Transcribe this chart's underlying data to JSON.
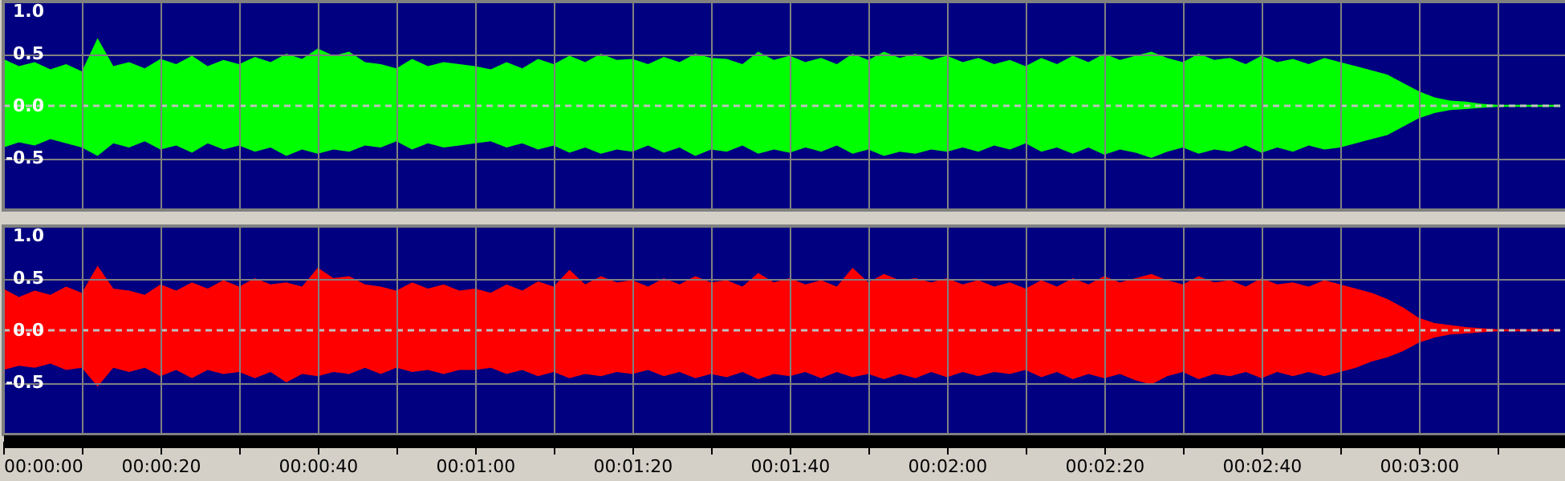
{
  "chart_data": [
    {
      "type": "area",
      "x": [
        0,
        2,
        4,
        6,
        8,
        10,
        12,
        14,
        16,
        18,
        20,
        22,
        24,
        26,
        28,
        30,
        32,
        34,
        36,
        38,
        40,
        42,
        44,
        46,
        48,
        50,
        52,
        54,
        56,
        58,
        60,
        62,
        64,
        66,
        68,
        70,
        72,
        74,
        76,
        78,
        80,
        82,
        84,
        86,
        88,
        90,
        92,
        94,
        96,
        98,
        100,
        102,
        104,
        106,
        108,
        110,
        112,
        114,
        116,
        118,
        120,
        122,
        124,
        126,
        128,
        130,
        132,
        134,
        136,
        138,
        140,
        142,
        144,
        146,
        148,
        150,
        152,
        154,
        156,
        158,
        160,
        162,
        164,
        166,
        168,
        170,
        172,
        174,
        176,
        178,
        180,
        182,
        184,
        186,
        188,
        190,
        192,
        194,
        196,
        198
      ],
      "series": [
        {
          "color": "#00ff00",
          "values": [
            0.45,
            0.38,
            0.42,
            0.35,
            0.4,
            0.33,
            0.65,
            0.38,
            0.42,
            0.36,
            0.45,
            0.4,
            0.48,
            0.38,
            0.44,
            0.4,
            0.47,
            0.42,
            0.5,
            0.45,
            0.55,
            0.48,
            0.52,
            0.42,
            0.4,
            0.36,
            0.45,
            0.38,
            0.42,
            0.4,
            0.38,
            0.35,
            0.42,
            0.36,
            0.45,
            0.4,
            0.48,
            0.42,
            0.5,
            0.44,
            0.45,
            0.4,
            0.47,
            0.42,
            0.5,
            0.46,
            0.45,
            0.4,
            0.52,
            0.44,
            0.48,
            0.42,
            0.46,
            0.4,
            0.5,
            0.44,
            0.52,
            0.46,
            0.5,
            0.44,
            0.48,
            0.42,
            0.46,
            0.4,
            0.44,
            0.38,
            0.46,
            0.4,
            0.48,
            0.42,
            0.5,
            0.44,
            0.48,
            0.52,
            0.46,
            0.42,
            0.5,
            0.44,
            0.46,
            0.4,
            0.48,
            0.42,
            0.45,
            0.4,
            0.46,
            0.42,
            0.38,
            0.34,
            0.3,
            0.22,
            0.14,
            0.08,
            0.05,
            0.04,
            0.02,
            0.01,
            0.01,
            0.01,
            0.01,
            0.01
          ]
        },
        {
          "color": "#00ff00",
          "values": [
            -0.4,
            -0.35,
            -0.38,
            -0.32,
            -0.36,
            -0.4,
            -0.48,
            -0.36,
            -0.4,
            -0.34,
            -0.42,
            -0.38,
            -0.45,
            -0.36,
            -0.42,
            -0.38,
            -0.44,
            -0.4,
            -0.48,
            -0.42,
            -0.46,
            -0.42,
            -0.44,
            -0.38,
            -0.4,
            -0.34,
            -0.42,
            -0.36,
            -0.4,
            -0.38,
            -0.36,
            -0.34,
            -0.4,
            -0.36,
            -0.42,
            -0.38,
            -0.45,
            -0.4,
            -0.46,
            -0.42,
            -0.44,
            -0.38,
            -0.45,
            -0.4,
            -0.48,
            -0.42,
            -0.44,
            -0.38,
            -0.46,
            -0.42,
            -0.45,
            -0.4,
            -0.44,
            -0.38,
            -0.46,
            -0.42,
            -0.48,
            -0.44,
            -0.46,
            -0.42,
            -0.44,
            -0.4,
            -0.44,
            -0.38,
            -0.42,
            -0.36,
            -0.44,
            -0.4,
            -0.46,
            -0.4,
            -0.47,
            -0.42,
            -0.45,
            -0.5,
            -0.44,
            -0.4,
            -0.46,
            -0.42,
            -0.44,
            -0.38,
            -0.45,
            -0.4,
            -0.44,
            -0.38,
            -0.42,
            -0.4,
            -0.36,
            -0.32,
            -0.28,
            -0.2,
            -0.12,
            -0.07,
            -0.04,
            -0.03,
            -0.02,
            -0.01,
            -0.01,
            -0.01,
            -0.01,
            -0.01
          ]
        }
      ],
      "xlim": [
        0,
        199
      ],
      "xticks": [
        0,
        {
          "value": 10,
          "label": null
        },
        20,
        {
          "value": 30,
          "label": null
        },
        40,
        {
          "value": 50,
          "label": null
        },
        60,
        {
          "value": 70,
          "label": null
        },
        80,
        {
          "value": 90,
          "label": null
        },
        100,
        {
          "value": 110,
          "label": null
        },
        120,
        {
          "value": 130,
          "label": null
        },
        140,
        {
          "value": 150,
          "label": null
        },
        160,
        {
          "value": 170,
          "label": null
        },
        180,
        {
          "value": 190,
          "label": null
        }
      ],
      "ylim": [
        -1,
        1
      ],
      "yticks": [
        {
          "value": 1,
          "label": "1.0"
        },
        {
          "value": 0.5,
          "label": "0.5"
        },
        {
          "value": 0,
          "label": "0.0"
        },
        {
          "value": -0.5,
          "label": "-0.5"
        }
      ],
      "ref_lines": [
        {
          "axis": "y",
          "value": 0,
          "color": "#c0c0c0",
          "line_style": "dashed"
        }
      ],
      "grid": true,
      "tick_labels": "y"
    },
    {
      "type": "area",
      "x": [
        0,
        2,
        4,
        6,
        8,
        10,
        12,
        14,
        16,
        18,
        20,
        22,
        24,
        26,
        28,
        30,
        32,
        34,
        36,
        38,
        40,
        42,
        44,
        46,
        48,
        50,
        52,
        54,
        56,
        58,
        60,
        62,
        64,
        66,
        68,
        70,
        72,
        74,
        76,
        78,
        80,
        82,
        84,
        86,
        88,
        90,
        92,
        94,
        96,
        98,
        100,
        102,
        104,
        106,
        108,
        110,
        112,
        114,
        116,
        118,
        120,
        122,
        124,
        126,
        128,
        130,
        132,
        134,
        136,
        138,
        140,
        142,
        144,
        146,
        148,
        150,
        152,
        154,
        156,
        158,
        160,
        162,
        164,
        166,
        168,
        170,
        172,
        174,
        176,
        178,
        180,
        182,
        184,
        186,
        188,
        190,
        192,
        194,
        196,
        198
      ],
      "series": [
        {
          "color": "#ff0000",
          "values": [
            0.4,
            0.32,
            0.38,
            0.34,
            0.42,
            0.36,
            0.62,
            0.4,
            0.38,
            0.34,
            0.44,
            0.38,
            0.46,
            0.4,
            0.48,
            0.42,
            0.5,
            0.44,
            0.46,
            0.42,
            0.6,
            0.5,
            0.52,
            0.44,
            0.42,
            0.38,
            0.46,
            0.4,
            0.44,
            0.38,
            0.4,
            0.36,
            0.44,
            0.38,
            0.47,
            0.42,
            0.58,
            0.44,
            0.52,
            0.46,
            0.48,
            0.42,
            0.5,
            0.44,
            0.52,
            0.46,
            0.48,
            0.42,
            0.55,
            0.46,
            0.5,
            0.44,
            0.48,
            0.42,
            0.6,
            0.46,
            0.54,
            0.48,
            0.5,
            0.46,
            0.5,
            0.44,
            0.48,
            0.42,
            0.46,
            0.4,
            0.48,
            0.42,
            0.5,
            0.44,
            0.52,
            0.46,
            0.5,
            0.54,
            0.48,
            0.44,
            0.52,
            0.46,
            0.48,
            0.42,
            0.5,
            0.44,
            0.46,
            0.42,
            0.48,
            0.44,
            0.4,
            0.36,
            0.3,
            0.22,
            0.12,
            0.07,
            0.05,
            0.03,
            0.02,
            0.01,
            0.01,
            0.01,
            0.01,
            0.01
          ]
        },
        {
          "color": "#ff0000",
          "values": [
            -0.38,
            -0.34,
            -0.36,
            -0.32,
            -0.38,
            -0.36,
            -0.54,
            -0.36,
            -0.4,
            -0.36,
            -0.44,
            -0.38,
            -0.46,
            -0.38,
            -0.42,
            -0.4,
            -0.46,
            -0.4,
            -0.5,
            -0.42,
            -0.44,
            -0.4,
            -0.42,
            -0.36,
            -0.42,
            -0.36,
            -0.4,
            -0.38,
            -0.42,
            -0.38,
            -0.38,
            -0.36,
            -0.42,
            -0.38,
            -0.44,
            -0.4,
            -0.46,
            -0.42,
            -0.44,
            -0.4,
            -0.42,
            -0.38,
            -0.44,
            -0.4,
            -0.46,
            -0.42,
            -0.45,
            -0.4,
            -0.47,
            -0.42,
            -0.44,
            -0.4,
            -0.46,
            -0.4,
            -0.45,
            -0.42,
            -0.47,
            -0.42,
            -0.46,
            -0.4,
            -0.45,
            -0.4,
            -0.44,
            -0.4,
            -0.42,
            -0.38,
            -0.45,
            -0.4,
            -0.47,
            -0.42,
            -0.46,
            -0.42,
            -0.48,
            -0.52,
            -0.44,
            -0.4,
            -0.47,
            -0.42,
            -0.44,
            -0.4,
            -0.46,
            -0.4,
            -0.44,
            -0.4,
            -0.44,
            -0.4,
            -0.36,
            -0.3,
            -0.26,
            -0.2,
            -0.12,
            -0.07,
            -0.04,
            -0.03,
            -0.02,
            -0.01,
            -0.01,
            -0.01,
            -0.01,
            -0.01
          ]
        }
      ],
      "xlim": [
        0,
        199
      ],
      "xticks": [
        {
          "value": 0,
          "label": "00:00:00"
        },
        {
          "value": 10,
          "label": null
        },
        {
          "value": 20,
          "label": "00:00:20"
        },
        {
          "value": 30,
          "label": null
        },
        {
          "value": 40,
          "label": "00:00:40"
        },
        {
          "value": 50,
          "label": null
        },
        {
          "value": 60,
          "label": "00:01:00"
        },
        {
          "value": 70,
          "label": null
        },
        {
          "value": 80,
          "label": "00:01:20"
        },
        {
          "value": 90,
          "label": null
        },
        {
          "value": 100,
          "label": "00:01:40"
        },
        {
          "value": 110,
          "label": null
        },
        {
          "value": 120,
          "label": "00:02:00"
        },
        {
          "value": 130,
          "label": null
        },
        {
          "value": 140,
          "label": "00:02:20"
        },
        {
          "value": 150,
          "label": null
        },
        {
          "value": 160,
          "label": "00:02:40"
        },
        {
          "value": 170,
          "label": null
        },
        {
          "value": 180,
          "label": "00:03:00"
        },
        {
          "value": 190,
          "label": null
        }
      ],
      "ylim": [
        -1,
        1
      ],
      "yticks": [
        {
          "value": 1,
          "label": "1.0"
        },
        {
          "value": 0.5,
          "label": "0.5"
        },
        {
          "value": 0,
          "label": "0.0"
        },
        {
          "value": -0.5,
          "label": "-0.5"
        }
      ],
      "ref_lines": [
        {
          "axis": "y",
          "value": 0,
          "color": "#c0c0c0",
          "line_style": "dashed"
        }
      ],
      "grid": true
    }
  ]
}
